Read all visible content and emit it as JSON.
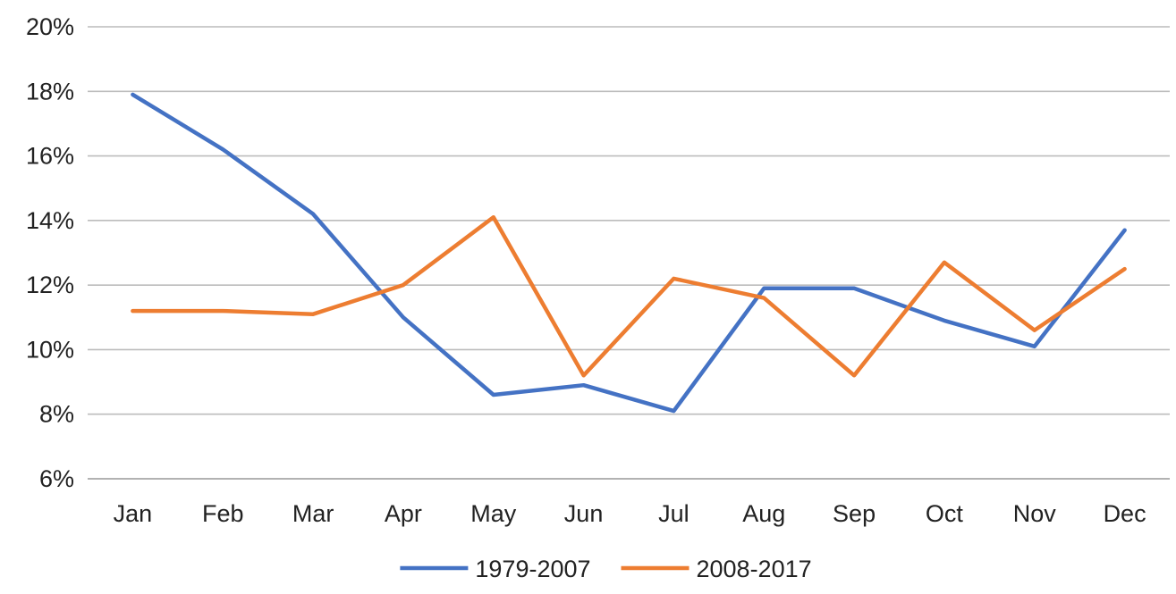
{
  "chart_data": {
    "type": "line",
    "title": "",
    "xlabel": "",
    "ylabel": "",
    "categories": [
      "Jan",
      "Feb",
      "Mar",
      "Apr",
      "May",
      "Jun",
      "Jul",
      "Aug",
      "Sep",
      "Oct",
      "Nov",
      "Dec"
    ],
    "ylim": [
      6,
      20
    ],
    "y_unit": "%",
    "y_ticks": [
      6,
      8,
      10,
      12,
      14,
      16,
      18,
      20
    ],
    "y_tick_labels": [
      "6%",
      "8%",
      "10%",
      "12%",
      "14%",
      "16%",
      "18%",
      "20%"
    ],
    "grid": true,
    "legend_position": "bottom",
    "series": [
      {
        "name": "1979-2007",
        "color": "#4472C4",
        "values": [
          17.9,
          16.2,
          14.2,
          11.0,
          8.6,
          8.9,
          8.1,
          11.9,
          11.9,
          10.9,
          10.1,
          13.7
        ]
      },
      {
        "name": "2008-2017",
        "color": "#ED7D31",
        "values": [
          11.2,
          11.2,
          11.1,
          12.0,
          14.1,
          9.2,
          12.2,
          11.6,
          9.2,
          12.7,
          10.6,
          12.5
        ]
      }
    ]
  }
}
